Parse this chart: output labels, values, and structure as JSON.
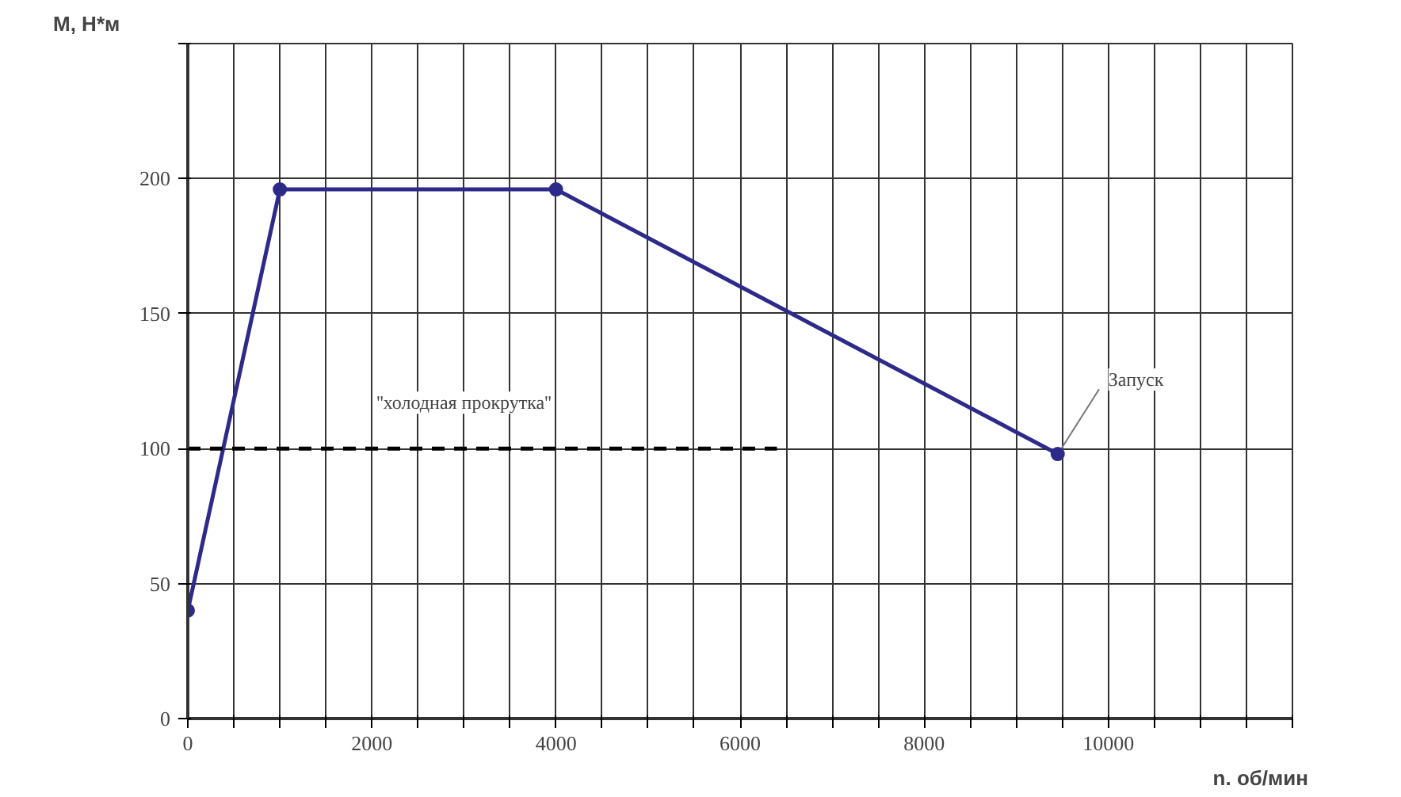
{
  "chart_data": {
    "type": "line",
    "xlabel": "n. об/мин",
    "ylabel": "M, Н*м",
    "x": [
      0,
      1000,
      4000,
      9450
    ],
    "series": [
      {
        "color": "#2e2a8a",
        "values": [
          40,
          196,
          196,
          98
        ],
        "marker": "circle",
        "line_style": "solid"
      },
      {
        "color": "#000000",
        "x": [
          0,
          6400
        ],
        "values": [
          100,
          100
        ],
        "marker": "none",
        "line_style": "dashed"
      }
    ],
    "xlim": [
      0,
      12000
    ],
    "ylim": [
      0,
      250
    ],
    "xticks": [
      0,
      {
        "value": 500,
        "label": null
      },
      {
        "value": 1000,
        "label": null
      },
      {
        "value": 1500,
        "label": null
      },
      2000,
      {
        "value": 2500,
        "label": null
      },
      {
        "value": 3000,
        "label": null
      },
      {
        "value": 3500,
        "label": null
      },
      4000,
      {
        "value": 4500,
        "label": null
      },
      {
        "value": 5000,
        "label": null
      },
      {
        "value": 5500,
        "label": null
      },
      6000,
      {
        "value": 6500,
        "label": null
      },
      {
        "value": 7000,
        "label": null
      },
      {
        "value": 7500,
        "label": null
      },
      8000,
      {
        "value": 8500,
        "label": null
      },
      {
        "value": 9000,
        "label": null
      },
      {
        "value": 9500,
        "label": null
      },
      10000,
      {
        "value": 10500,
        "label": null
      },
      {
        "value": 11000,
        "label": null
      },
      {
        "value": 11500,
        "label": null
      },
      {
        "value": 12000,
        "label": null
      }
    ],
    "yticks": [
      0,
      50,
      100,
      150,
      200,
      {
        "value": 250,
        "label": null
      }
    ],
    "grid": true,
    "annotations": [
      {
        "text": "''холодная прокрутка''",
        "x": 3000,
        "y": 100
      },
      {
        "text": "Запуск",
        "x": 9450,
        "y": 98
      }
    ]
  }
}
